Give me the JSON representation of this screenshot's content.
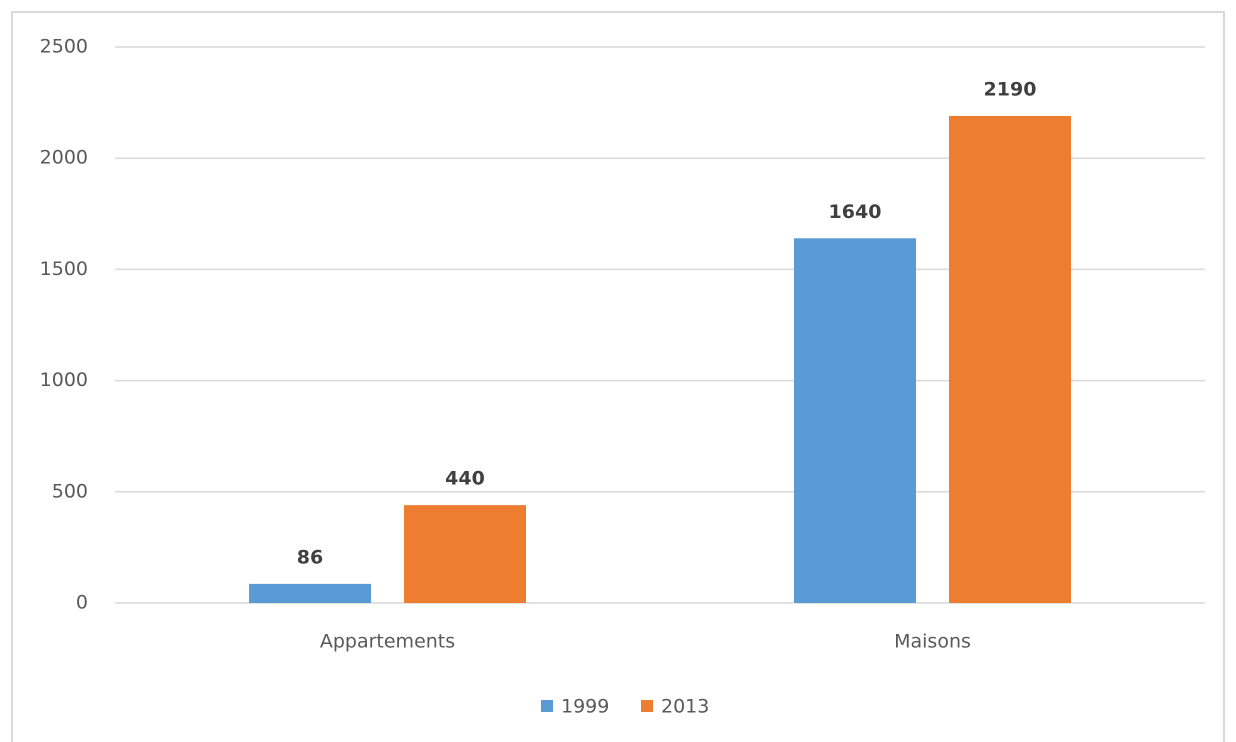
{
  "chart_data": {
    "type": "bar",
    "categories": [
      "Appartements",
      "Maisons"
    ],
    "series": [
      {
        "name": "1999",
        "color": "#5b9bd5",
        "values": [
          86,
          1640
        ]
      },
      {
        "name": "2013",
        "color": "#ed7d31",
        "values": [
          440,
          2190
        ]
      }
    ],
    "ylim": [
      0,
      2500
    ],
    "yticks": [
      0,
      500,
      1000,
      1500,
      2000,
      2500
    ],
    "grid": true,
    "legend": "bottom",
    "data_labels": true
  }
}
